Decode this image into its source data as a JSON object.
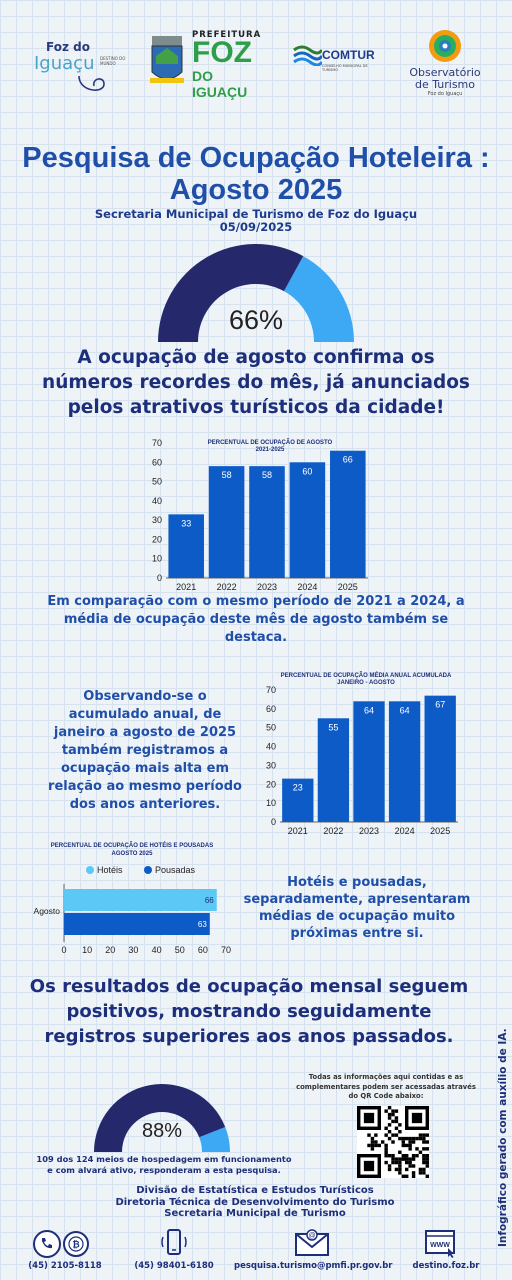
{
  "logos": {
    "foz_line1": "Foz do",
    "foz_line2": "Iguaçu",
    "foz_tag": "DESTINO DO MUNDO",
    "prefeitura_top": "PREFEITURA",
    "prefeitura_big1": "FOZ",
    "prefeitura_big2": "DO IGUAÇU",
    "comtur": "COMTUR",
    "comtur_sub": "CONSELHO MUNICIPAL DE TURISMO",
    "obs_line1": "Observatório",
    "obs_line2": "de Turismo",
    "obs_line3": "Foz do Iguaçu"
  },
  "header": {
    "title_line1": "Pesquisa de Ocupação Hoteleira :",
    "title_line2": "Agosto 2025",
    "subtitle": "Secretaria Municipal de Turismo de Foz do Iguaçu",
    "date": "05/09/2025"
  },
  "gauge_main": {
    "label": "66%",
    "value": 0.66,
    "color_fill": "#25296b",
    "color_rest": "#3da9f5"
  },
  "headline": {
    "line1": "A ocupação de agosto confirma os",
    "line2": "números recordes do mês, já anunciados",
    "line3": "pelos atrativos turísticos da cidade!"
  },
  "chart_data": [
    {
      "type": "bar",
      "title": "PERCENTUAL DE OCUPAÇÃO DE AGOSTO",
      "subtitle": "2021-2025",
      "categories": [
        "2021",
        "2022",
        "2023",
        "2024",
        "2025"
      ],
      "values": [
        33,
        58,
        58,
        60,
        66
      ],
      "ylim": [
        0,
        70
      ],
      "yticks": [
        "0",
        "10",
        "20",
        "30",
        "40",
        "50",
        "60",
        "70"
      ],
      "bar_color": "#0d5bc6"
    },
    {
      "type": "bar",
      "title": "PERCENTUAL DE OCUPAÇÃO MÉDIA ANUAL ACUMULADA",
      "subtitle": "JANEIRO - AGOSTO",
      "categories": [
        "2021",
        "2022",
        "2023",
        "2024",
        "2025"
      ],
      "values": [
        23,
        55,
        64,
        64,
        67
      ],
      "ylim": [
        0,
        70
      ],
      "yticks": [
        "0",
        "10",
        "20",
        "30",
        "40",
        "50",
        "60",
        "70"
      ],
      "bar_color": "#0d5bc6"
    },
    {
      "type": "bar",
      "orientation": "horizontal",
      "title": "PERCENTUAL DE OCUPAÇÃO DE HOTÉIS E POUSADAS",
      "subtitle": "AGOSTO 2025",
      "categories": [
        "Agosto"
      ],
      "series": [
        {
          "name": "Hotéis",
          "values": [
            66
          ],
          "color": "#5bc8f5"
        },
        {
          "name": "Pousadas",
          "values": [
            63
          ],
          "color": "#0d5bc6"
        }
      ],
      "xlim": [
        0,
        70
      ],
      "xticks": [
        "0",
        "10",
        "20",
        "30",
        "40",
        "50",
        "60",
        "70"
      ],
      "legend": "top"
    }
  ],
  "text_blocks": {
    "comparison": "Em comparação com o mesmo período de 2021 a 2024, a média de ocupação deste mês de agosto também se destaca.",
    "annual_1": "Observando-se o",
    "annual_2": "acumulado anual, de",
    "annual_3": "janeiro a agosto de 2025",
    "annual_4": "também registramos a",
    "annual_5": "ocupação mais alta em",
    "annual_6": "relação ao mesmo período",
    "annual_7": "dos anos anteriores.",
    "hotels_1": "Hotéis e pousadas,",
    "hotels_2": "separadamente, apresentaram",
    "hotels_3": "médias de ocupação muito",
    "hotels_4": "próximas entre si.",
    "results_1": "Os resultados de ocupação mensal seguem",
    "results_2": "positivos, mostrando seguidamente",
    "results_3": "registros superiores aos anos passados."
  },
  "gauge_small": {
    "label": "88%",
    "value": 0.88,
    "caption_1": "109 dos 124 meios de hospedagem em funcionamento",
    "caption_2": "e com alvará ativo, responderam a esta pesquisa."
  },
  "qr": {
    "line1": "Todas as informações aqui contidas e as",
    "line2": "complementares podem ser acessadas através",
    "line3": "do QR Code abaixo:"
  },
  "footer": {
    "division1": "Divisão de Estatística e Estudos Turísticos",
    "division2": "Diretoria Técnica de Desenvolvimento do Turismo",
    "division3": "Secretaria Municipal de Turismo",
    "phone1": "(45) 2105-8118",
    "phone2": "(45) 98401-6180",
    "email": "pesquisa.turismo@pmfi.pr.gov.br",
    "website": "destino.foz.br",
    "www_icon_text": "WWW",
    "side_note": "Infográfico gerado com auxílio de IA."
  },
  "colors": {
    "title": "#1f4fa8",
    "dark_navy": "#1d2f7a",
    "bar": "#0d5bc6",
    "light_blue": "#5bc8f5"
  }
}
